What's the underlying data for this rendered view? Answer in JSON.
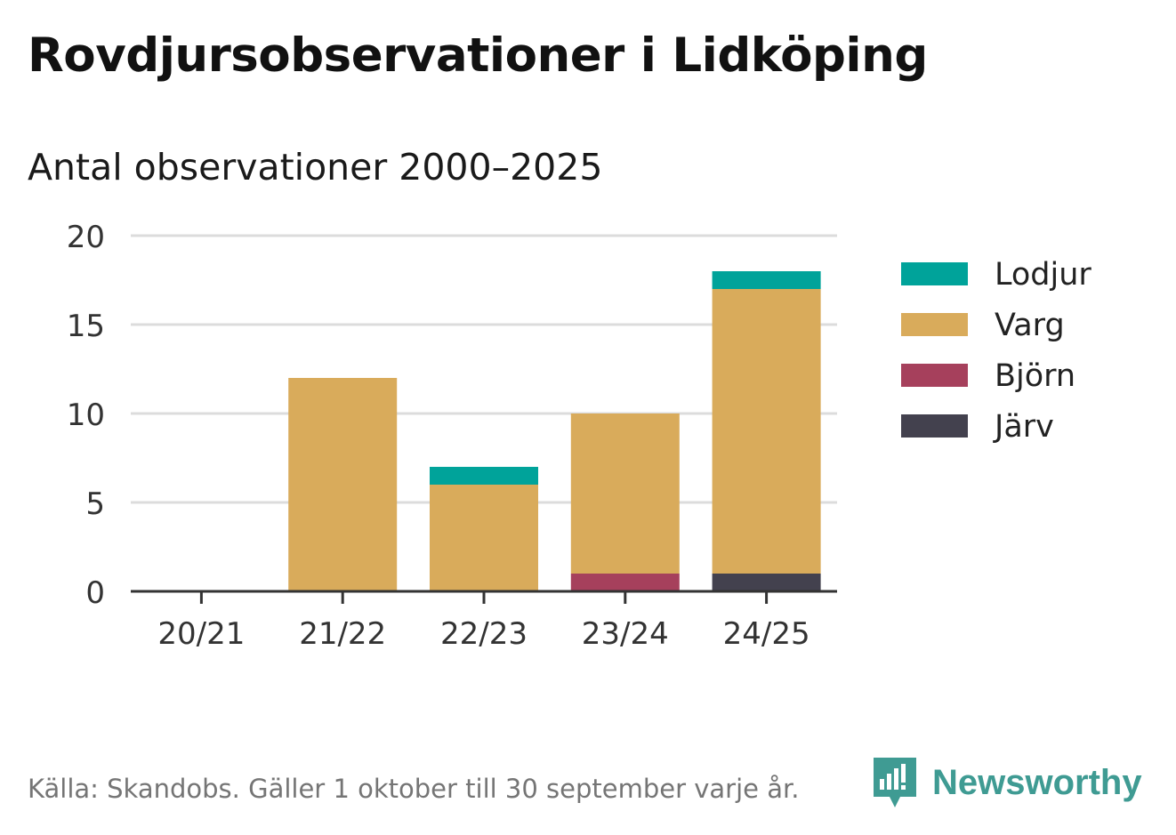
{
  "title": "Rovdjursobservationer i Lidköping",
  "subtitle": "Antal observationer 2000–2025",
  "source": "Källa: Skandobs. Gäller 1 oktober till 30 september varje år.",
  "brand": {
    "name": "Newsworthy",
    "icon": "newsworthy-logo-icon",
    "color": "#3f9b93"
  },
  "chart_data": {
    "type": "bar",
    "stacked": true,
    "title": "Rovdjursobservationer i Lidköping",
    "subtitle": "Antal observationer 2000–2025",
    "xlabel": "",
    "ylabel": "",
    "ylim": [
      0,
      20
    ],
    "yticks": [
      0,
      5,
      10,
      15,
      20
    ],
    "grid": true,
    "legend_position": "right",
    "categories": [
      "20/21",
      "21/22",
      "22/23",
      "23/24",
      "24/25"
    ],
    "series": [
      {
        "name": "Järv",
        "color": "#43414e",
        "values": [
          0,
          0,
          0,
          0,
          1
        ]
      },
      {
        "name": "Björn",
        "color": "#a6405c",
        "values": [
          0,
          0,
          0,
          1,
          0
        ]
      },
      {
        "name": "Varg",
        "color": "#d9ab5b",
        "values": [
          0,
          12,
          6,
          9,
          16
        ]
      },
      {
        "name": "Lodjur",
        "color": "#00a39a",
        "values": [
          0,
          0,
          1,
          0,
          1
        ]
      }
    ],
    "legend_order": [
      "Lodjur",
      "Varg",
      "Björn",
      "Järv"
    ]
  }
}
